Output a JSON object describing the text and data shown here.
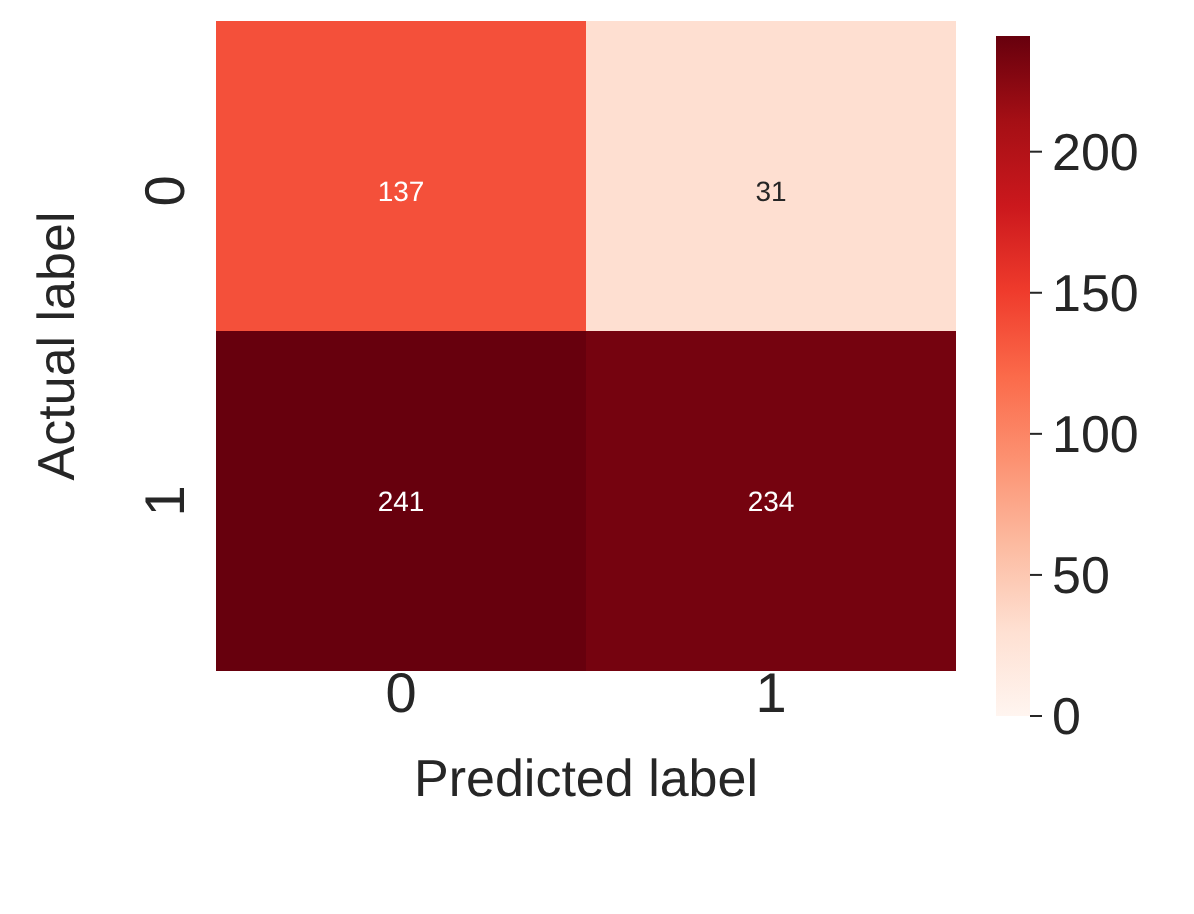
{
  "chart_data": {
    "type": "heatmap",
    "xlabel": "Predicted label",
    "ylabel": "Actual label",
    "categories": [
      "0",
      "1"
    ],
    "y_categories": [
      "0",
      "1"
    ],
    "cells": [
      [
        137,
        31
      ],
      [
        241,
        234
      ]
    ],
    "data_labels": true,
    "clim": [
      0,
      241
    ],
    "cticks": [
      0,
      50,
      100,
      150,
      200
    ]
  }
}
